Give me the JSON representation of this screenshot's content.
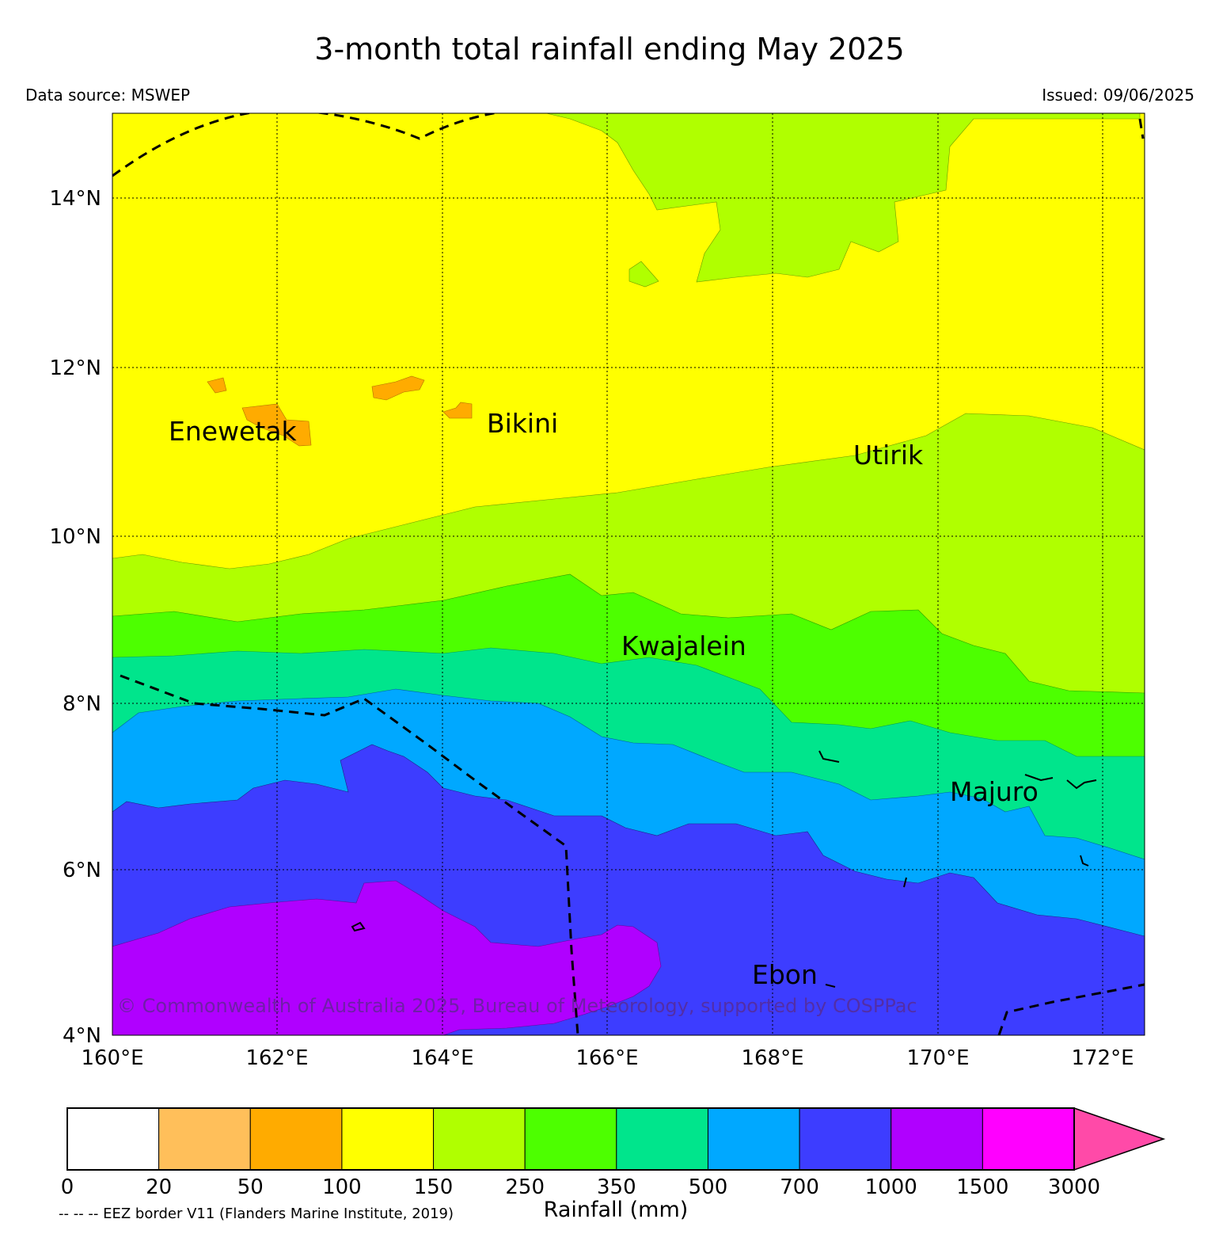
{
  "title": "3-month total rainfall ending May 2025",
  "data_source": "Data source: MSWEP",
  "issued": "Issued: 09/06/2025",
  "copyright": "© Commonwealth of Australia 2025, Bureau of Meteorology, supported by COSPPac",
  "map": {
    "lon_range": [
      160,
      172.5
    ],
    "lat_range": [
      4,
      15
    ],
    "lat_labels": [
      "4°N",
      "6°N",
      "8°N",
      "10°N",
      "12°N",
      "14°N"
    ],
    "lon_labels": [
      "160°E",
      "162°E",
      "164°E",
      "166°E",
      "168°E",
      "170°E",
      "172°E"
    ],
    "places": [
      "Enewetak",
      "Bikini",
      "Utirik",
      "Kwajalein",
      "Majuro",
      "Ebon"
    ]
  },
  "colorbar": {
    "title": "Rainfall (mm)",
    "ticks": [
      "0",
      "20",
      "50",
      "100",
      "150",
      "250",
      "350",
      "500",
      "700",
      "1000",
      "1500",
      "3000"
    ],
    "colors": [
      "#ffffff",
      "#ffbf5a",
      "#ffab00",
      "#ffff00",
      "#b0ff00",
      "#4dff00",
      "#00e58c",
      "#00a8ff",
      "#3d3dff",
      "#b000ff",
      "#ff00ff",
      "#ff4aa8"
    ]
  },
  "eez_note": "-- -- -- EEZ border V11 (Flanders Marine Institute, 2019)"
}
